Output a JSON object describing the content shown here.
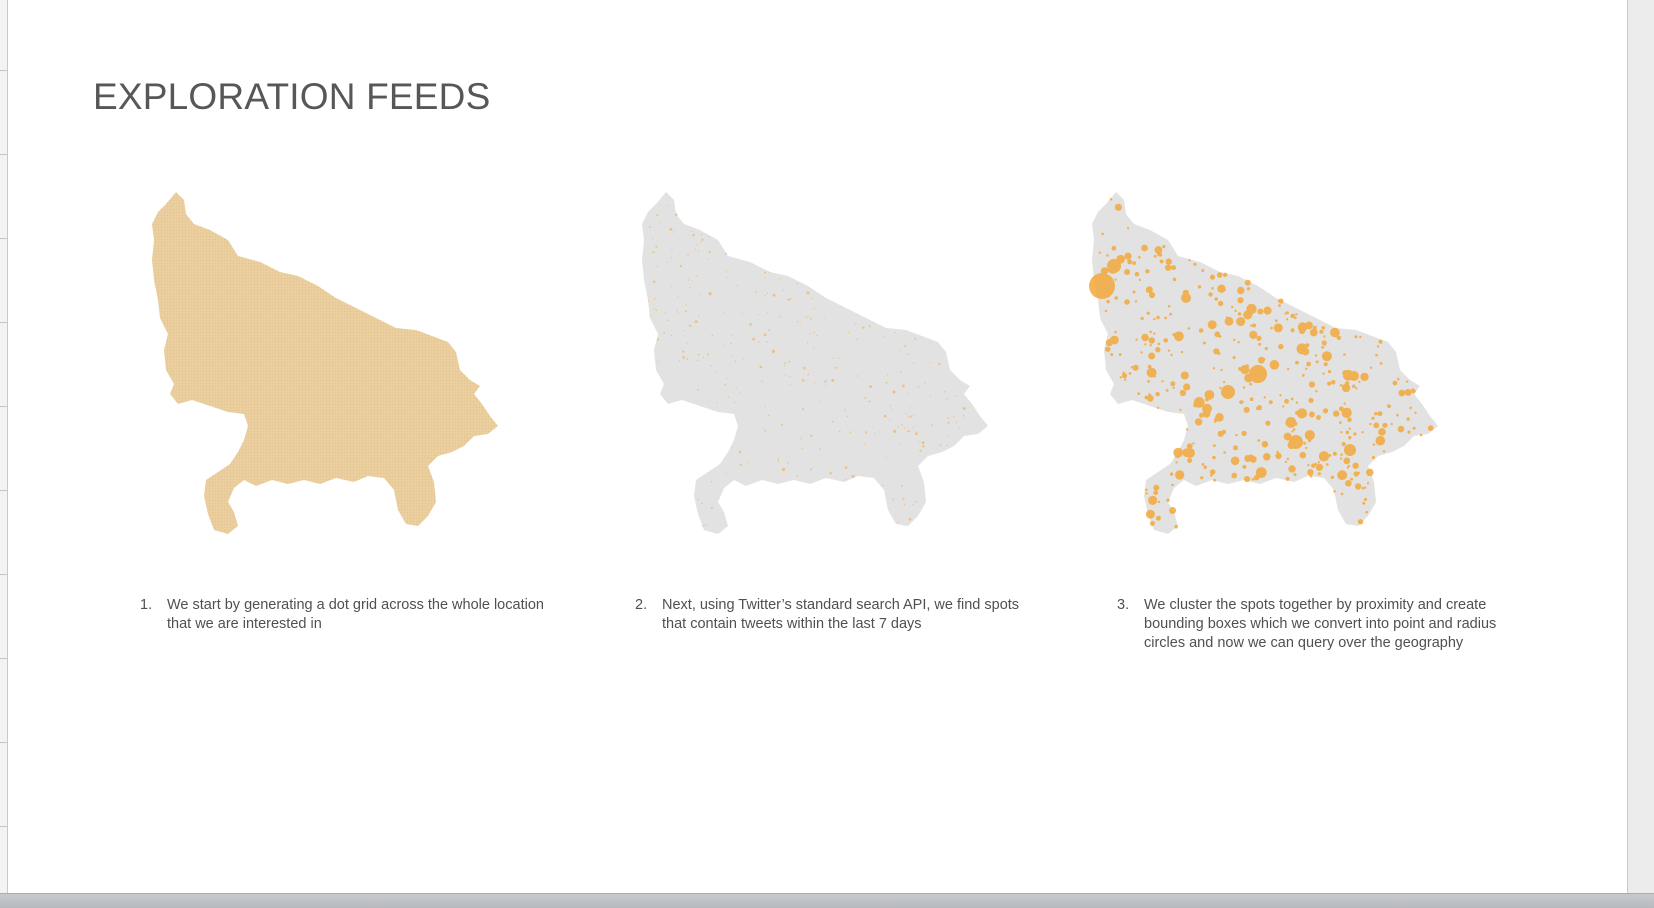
{
  "slide": {
    "title": "EXPLORATION FEEDS",
    "steps": [
      {
        "number": "1.",
        "text": "We start by generating a dot grid across the whole location that we are interested in"
      },
      {
        "number": "2.",
        "text": "Next, using Twitter’s standard search API, we find spots that contain tweets within the last 7 days"
      },
      {
        "number": "3.",
        "text": "We cluster the spots together by proximity and create bounding boxes which we convert into point and radius circles and now we can query over the geography"
      }
    ]
  },
  "colors": {
    "grid_fill": "#ebcf9f",
    "region_gray": "#e2e2e2",
    "spot_orange": "#f2a93b",
    "title_gray": "#575757"
  }
}
